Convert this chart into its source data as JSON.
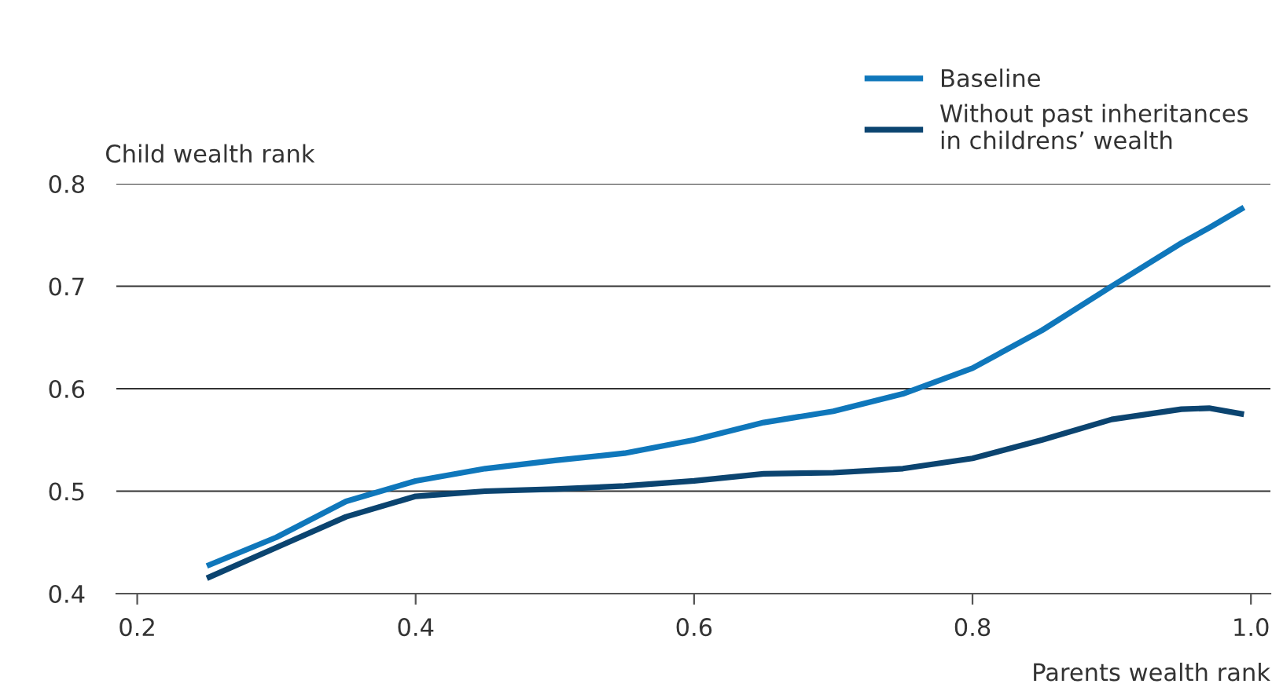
{
  "chart_data": {
    "type": "line",
    "xlabel": "Parents wealth rank",
    "ylabel": "Child wealth rank",
    "xlim": [
      0.185,
      1.014
    ],
    "xticks": [
      {
        "value": 0.2,
        "label": "0.2"
      },
      {
        "value": 0.4,
        "label": "0.4"
      },
      {
        "value": 0.6,
        "label": "0.6"
      },
      {
        "value": 0.8,
        "label": "0.8"
      },
      {
        "value": 1.0,
        "label": "1.0"
      }
    ],
    "ylim": [
      0.4,
      0.8
    ],
    "yticks": [
      {
        "value": 0.4,
        "label": "0.4"
      },
      {
        "value": 0.5,
        "label": "0.5"
      },
      {
        "value": 0.6,
        "label": "0.6"
      },
      {
        "value": 0.7,
        "label": "0.7"
      },
      {
        "value": 0.8,
        "label": "0.8"
      }
    ],
    "grid": "y",
    "legend": "top right",
    "line_style": "solid",
    "x": [
      0.25,
      0.3,
      0.35,
      0.4,
      0.45,
      0.5,
      0.55,
      0.6,
      0.65,
      0.7,
      0.75,
      0.8,
      0.85,
      0.9,
      0.95,
      0.97,
      0.995
    ],
    "series": [
      {
        "name": "Baseline",
        "color": "#0f77bb",
        "values": [
          0.427,
          0.455,
          0.49,
          0.51,
          0.522,
          0.53,
          0.537,
          0.55,
          0.567,
          0.578,
          0.595,
          0.62,
          0.657,
          0.7,
          0.742,
          0.757,
          0.777
        ]
      },
      {
        "name": "Without past inheritances\nin childrens’ wealth",
        "color": "#0b4470",
        "values": [
          0.415,
          0.445,
          0.475,
          0.495,
          0.5,
          0.502,
          0.505,
          0.51,
          0.517,
          0.518,
          0.522,
          0.532,
          0.55,
          0.57,
          0.58,
          0.581,
          0.575
        ]
      }
    ]
  }
}
